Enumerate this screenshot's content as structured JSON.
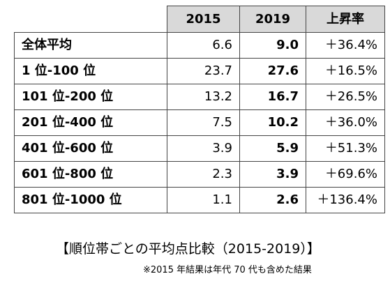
{
  "table": {
    "headers": [
      "2015",
      "2019",
      "上昇率"
    ],
    "rows": [
      {
        "label": "全体平均",
        "v2015": "6.6",
        "v2019": "9.0",
        "rate": "＋36.4%"
      },
      {
        "label": "1 位-100 位",
        "v2015": "23.7",
        "v2019": "27.6",
        "rate": "＋16.5%"
      },
      {
        "label": "101 位-200 位",
        "v2015": "13.2",
        "v2019": "16.7",
        "rate": "＋26.5%"
      },
      {
        "label": "201 位-400 位",
        "v2015": "7.5",
        "v2019": "10.2",
        "rate": "＋36.0%"
      },
      {
        "label": "401 位-600 位",
        "v2015": "3.9",
        "v2019": "5.9",
        "rate": "＋51.3%"
      },
      {
        "label": "601 位-800 位",
        "v2015": "2.3",
        "v2019": "3.9",
        "rate": "＋69.6%"
      },
      {
        "label": "801 位-1000 位",
        "v2015": "1.1",
        "v2019": "2.6",
        "rate": "＋136.4%"
      }
    ]
  },
  "caption": "【順位帯ごとの平均点比較（2015-2019）】",
  "note": "※2015 年結果は年代 70 代も含めた結果",
  "colors": {
    "header_bg": "#d9d9d9",
    "border": "#444444",
    "text": "#000000"
  }
}
